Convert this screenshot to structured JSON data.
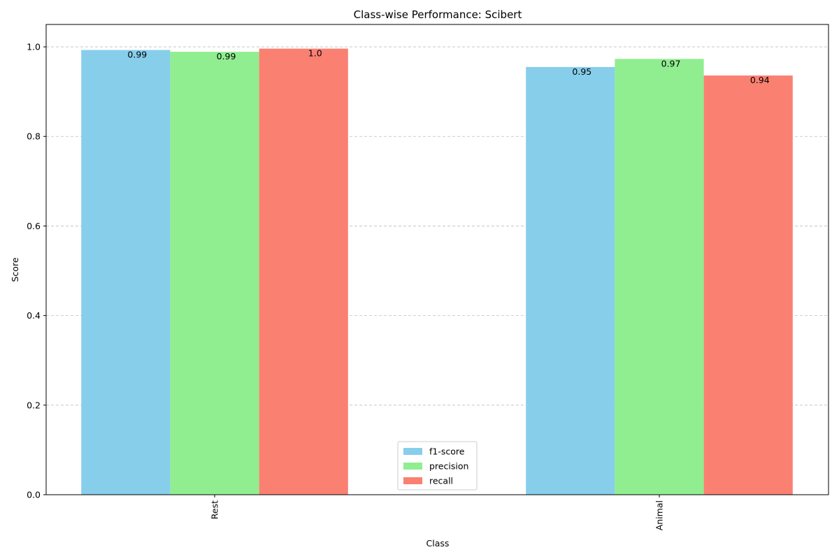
{
  "chart_data": {
    "type": "bar",
    "title": "Class-wise Performance: Scibert",
    "xlabel": "Class",
    "ylabel": "Score",
    "categories": [
      "Rest",
      "Animal"
    ],
    "series": [
      {
        "name": "f1-score",
        "values": [
          0.993,
          0.955
        ],
        "labels": [
          "0.99",
          "0.95"
        ],
        "color": "#87CEEB"
      },
      {
        "name": "precision",
        "values": [
          0.989,
          0.973
        ],
        "labels": [
          "0.99",
          "0.97"
        ],
        "color": "#90EE90"
      },
      {
        "name": "recall",
        "values": [
          0.996,
          0.936
        ],
        "labels": [
          "1.0",
          "0.94"
        ],
        "color": "#FA8072"
      }
    ],
    "ylim": [
      0,
      1.05
    ],
    "yticks": [
      "0.0",
      "0.2",
      "0.4",
      "0.6",
      "0.8",
      "1.0"
    ],
    "grid": "y-dashed",
    "legend_position": "lower center",
    "xtick_rotation": "vertical"
  }
}
